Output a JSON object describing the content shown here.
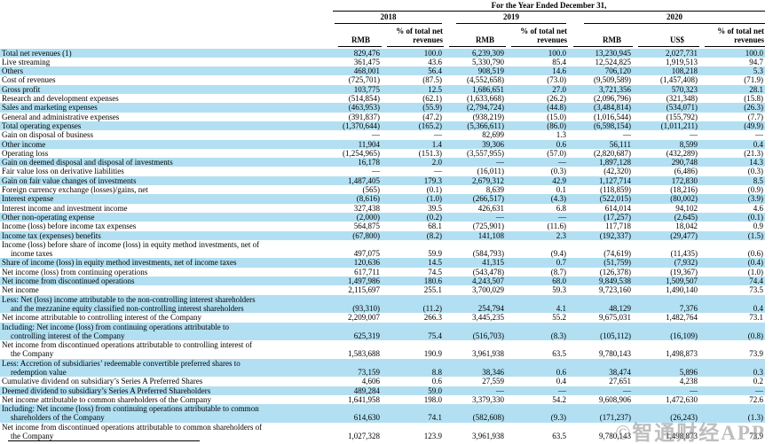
{
  "colors": {
    "row_highlight": "#b2e0f2",
    "text": "#000000",
    "watermark_gray": "#8a8a8a"
  },
  "header": {
    "title": "For the Year Ended December 31,",
    "years": [
      "2018",
      "2019",
      "2020"
    ],
    "columns": [
      "RMB",
      "% of total net revenues",
      "RMB",
      "% of total net revenues",
      "RMB",
      "US$",
      "% of total net revenues"
    ]
  },
  "watermark": {
    "text": "©智通财经APP"
  },
  "table": {
    "rows": [
      {
        "label": "Total net revenues (1)",
        "label2": "",
        "bg": "cyan",
        "cells": [
          "829,476",
          "100.0",
          "6,239,309",
          "100.0",
          "13,230,945",
          "2,027,731",
          "100.0"
        ]
      },
      {
        "label": "Live streaming",
        "label2": "",
        "bg": "white",
        "cells": [
          "361,475",
          "43.6",
          "5,330,790",
          "85.4",
          "12,524,825",
          "1,919,513",
          "94.7"
        ]
      },
      {
        "label": "Others",
        "label2": "",
        "bg": "cyan",
        "cells": [
          "468,001",
          "56.4",
          "908,519",
          "14.6",
          "706,120",
          "108,218",
          "5.3"
        ]
      },
      {
        "label": "Cost of revenues",
        "label2": "",
        "bg": "white",
        "cells": [
          "(725,701)",
          "(87.5)",
          "(4,552,658)",
          "(73.0)",
          "(9,509,589)",
          "(1,457,408)",
          "(71.9)"
        ]
      },
      {
        "label": "Gross profit",
        "label2": "",
        "bg": "cyan",
        "cells": [
          "103,775",
          "12.5",
          "1,686,651",
          "27.0",
          "3,721,356",
          "570,323",
          "28.1"
        ]
      },
      {
        "label": "Research and development expenses",
        "label2": "",
        "bg": "white",
        "cells": [
          "(514,854)",
          "(62.1)",
          "(1,633,668)",
          "(26.2)",
          "(2,096,796)",
          "(321,348)",
          "(15.8)"
        ]
      },
      {
        "label": "Sales and marketing expenses",
        "label2": "",
        "bg": "cyan",
        "cells": [
          "(463,953)",
          "(55.9)",
          "(2,794,724)",
          "(44.8)",
          "(3,484,814)",
          "(534,071)",
          "(26.3)"
        ]
      },
      {
        "label": "General and administrative expenses",
        "label2": "",
        "bg": "white",
        "cells": [
          "(391,837)",
          "(47.2)",
          "(938,219)",
          "(15.0)",
          "(1,016,544)",
          "(155,792)",
          "(7.7)"
        ]
      },
      {
        "label": "Total operating expenses",
        "label2": "",
        "bg": "cyan",
        "cells": [
          "(1,370,644)",
          "(165.2)",
          "(5,366,611)",
          "(86.0)",
          "(6,598,154)",
          "(1,011,211)",
          "(49.9)"
        ]
      },
      {
        "label": "Gain on disposal of business",
        "label2": "",
        "bg": "white",
        "cells": [
          "—",
          "—",
          "82,699",
          "1.3",
          "—",
          "—",
          "—"
        ]
      },
      {
        "label": "Other income",
        "label2": "",
        "bg": "cyan",
        "cells": [
          "11,904",
          "1.4",
          "39,306",
          "0.6",
          "56,111",
          "8,599",
          "0.4"
        ]
      },
      {
        "label": "Operating loss",
        "label2": "",
        "bg": "white",
        "cells": [
          "(1,254,965)",
          "(151.3)",
          "(3,557,955)",
          "(57.0)",
          "(2,820,687)",
          "(432,289)",
          "(21.3)"
        ]
      },
      {
        "label": "Gain on deemed disposal and disposal of investments",
        "label2": "",
        "bg": "cyan",
        "cells": [
          "16,178",
          "2.0",
          "—",
          "—",
          "1,897,128",
          "290,748",
          "14.3"
        ]
      },
      {
        "label": "Fair value loss on derivative liabilities",
        "label2": "",
        "bg": "white",
        "cells": [
          "—",
          "—",
          "(16,011)",
          "(0.3)",
          "(42,320)",
          "(6,486)",
          "(0.3)"
        ]
      },
      {
        "label": "Gain on fair value changes of investments",
        "label2": "",
        "bg": "cyan",
        "cells": [
          "1,487,405",
          "179.3",
          "2,679,312",
          "42.9",
          "1,127,714",
          "172,830",
          "8.5"
        ]
      },
      {
        "label": "Foreign currency exchange (losses)/gains, net",
        "label2": "",
        "bg": "white",
        "cells": [
          "(565)",
          "(0.1)",
          "8,639",
          "0.1",
          "(118,859)",
          "(18,216)",
          "(0.9)"
        ]
      },
      {
        "label": "Interest expense",
        "label2": "",
        "bg": "cyan",
        "cells": [
          "(8,616)",
          "(1.0)",
          "(266,517)",
          "(4.3)",
          "(522,015)",
          "(80,002)",
          "(3.9)"
        ]
      },
      {
        "label": "Interest income and investment income",
        "label2": "",
        "bg": "white",
        "cells": [
          "327,438",
          "39.5",
          "426,631",
          "6.8",
          "614,014",
          "94,102",
          "4.6"
        ]
      },
      {
        "label": "Other non-operating expense",
        "label2": "",
        "bg": "cyan",
        "cells": [
          "(2,000)",
          "(0.2)",
          "—",
          "—",
          "(17,257)",
          "(2,645)",
          "(0.1)"
        ]
      },
      {
        "label": "Income (loss) before income tax expenses",
        "label2": "",
        "bg": "white",
        "cells": [
          "564,875",
          "68.1",
          "(725,901)",
          "(11.6)",
          "117,718",
          "18,042",
          "0.9"
        ]
      },
      {
        "label": "Income tax (expenses) benefits",
        "label2": "",
        "bg": "cyan",
        "cells": [
          "(67,800)",
          "(8.2)",
          "141,108",
          "2.3",
          "(192,337)",
          "(29,477)",
          "(1.5)"
        ]
      },
      {
        "label": "Income (loss) before share of income (loss) in equity method investments, net of",
        "label2": "income taxes",
        "bg": "white",
        "cells": [
          "497,075",
          "59.9",
          "(584,793)",
          "(9.4)",
          "(74,619)",
          "(11,435)",
          "(0.6)"
        ]
      },
      {
        "label": "Share of income (loss) in equity method investments, net of income taxes",
        "label2": "",
        "bg": "cyan",
        "cells": [
          "120,636",
          "14.5",
          "41,315",
          "0.7",
          "(51,759)",
          "(7,932)",
          "(0.4)"
        ]
      },
      {
        "label": "Net income (loss) from continuing operations",
        "label2": "",
        "bg": "white",
        "cells": [
          "617,711",
          "74.5",
          "(543,478)",
          "(8.7)",
          "(126,378)",
          "(19,367)",
          "(1.0)"
        ]
      },
      {
        "label": "Net income from discontinued operations",
        "label2": "",
        "bg": "cyan",
        "cells": [
          "1,497,986",
          "180.6",
          "4,243,507",
          "68.0",
          "9,849,538",
          "1,509,507",
          "74.4"
        ]
      },
      {
        "label": "Net income",
        "label2": "",
        "bg": "white",
        "cells": [
          "2,115,697",
          "255.1",
          "3,700,029",
          "59.3",
          "9,723,160",
          "1,490,140",
          "73.5"
        ]
      },
      {
        "label": "Less: Net (loss) income attributable to the non-controlling interest shareholders",
        "label2": "and the mezzanine equity classified non-controlling interest shareholders",
        "bg": "cyan",
        "cells": [
          "(93,310)",
          "(11.2)",
          "254,794",
          "4.1",
          "48,129",
          "7,376",
          "0.4"
        ]
      },
      {
        "label": "Net income attributable to controlling interest of the Company",
        "label2": "",
        "bg": "white",
        "cells": [
          "2,209,007",
          "266.3",
          "3,445,235",
          "55.2",
          "9,675,031",
          "1,482,764",
          "73.1"
        ]
      },
      {
        "label": "Including: Net income (loss) from continuing operations attributable to",
        "label2": "controlling interest of the Company",
        "bg": "cyan",
        "cells": [
          "625,319",
          "75.4",
          "(516,703)",
          "(8.3)",
          "(105,112)",
          "(16,109)",
          "(0.8)"
        ]
      },
      {
        "label": "Net income from discontinued operations attributable to controlling interest of",
        "label2": "the Company",
        "bg": "white",
        "cells": [
          "1,583,688",
          "190.9",
          "3,961,938",
          "63.5",
          "9,780,143",
          "1,498,873",
          "73.9"
        ]
      },
      {
        "label": "Less: Accretion of subsidiaries’ redeemable convertible preferred shares to",
        "label2": "redemption value",
        "bg": "cyan",
        "cells": [
          "73,159",
          "8.8",
          "38,346",
          "0.6",
          "38,474",
          "5,896",
          "0.3"
        ]
      },
      {
        "label": "Cumulative dividend on subsidiary’s Series A Preferred Shares",
        "label2": "",
        "bg": "white",
        "cells": [
          "4,606",
          "0.6",
          "27,559",
          "0.4",
          "27,651",
          "4,238",
          "0.2"
        ]
      },
      {
        "label": "Deemed dividend to subsidiary’s Series A Preferred Shareholders",
        "label2": "",
        "bg": "cyan",
        "cells": [
          "489,284",
          "59.0",
          "—",
          "—",
          "—",
          "—",
          "—"
        ]
      },
      {
        "label": "Net income attributable to common shareholders of the Company",
        "label2": "",
        "bg": "white",
        "cells": [
          "1,641,958",
          "198.0",
          "3,379,330",
          "54.2",
          "9,608,906",
          "1,472,630",
          "72.6"
        ]
      },
      {
        "label": "Including: Net income (loss) from continuing operations attributable to common",
        "label2": "shareholders  of the Company",
        "bg": "cyan",
        "cells": [
          "614,630",
          "74.1",
          "(582,608)",
          "(9.3)",
          "(171,237)",
          "(26,243)",
          "(1.3)"
        ]
      },
      {
        "label": "Net income from discontinued operations attributable to common shareholders of",
        "label2": "the Company",
        "bg": "white",
        "cells": [
          "1,027,328",
          "123.9",
          "3,961,938",
          "63.5",
          "9,780,143",
          "1,498,873",
          "73.9"
        ]
      }
    ]
  }
}
